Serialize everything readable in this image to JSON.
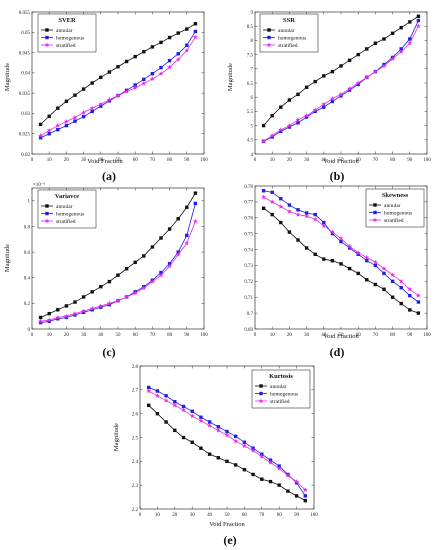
{
  "colors": {
    "annular": "#111111",
    "homogenous": "#1f1fe6",
    "stratified": "#e62ee6"
  },
  "chart_data": [
    {
      "type": "line",
      "panel_label": "(a)",
      "legend_title": "SVER",
      "legend_position": "top-left",
      "xlabel": "Void Fraction",
      "ylabel": "Magnitude",
      "xlim": [
        0,
        100
      ],
      "ylim": [
        0.02,
        0.055
      ],
      "xticks": [
        "0",
        "10",
        "20",
        "30",
        "40",
        "50",
        "60",
        "70",
        "80",
        "90",
        "100"
      ],
      "yticks": [
        "0.02",
        "0.025",
        "0.03",
        "0.035",
        "0.04",
        "0.045",
        "0.05",
        "0.055"
      ],
      "x": [
        5,
        10,
        15,
        20,
        25,
        30,
        35,
        40,
        45,
        50,
        55,
        60,
        65,
        70,
        75,
        80,
        85,
        90,
        95
      ],
      "series": [
        {
          "name": "annular",
          "color": "#111111",
          "marker": "square",
          "values": [
            0.0273,
            0.0293,
            0.0313,
            0.033,
            0.0345,
            0.036,
            0.0375,
            0.0389,
            0.0402,
            0.0415,
            0.0428,
            0.044,
            0.0452,
            0.0464,
            0.0475,
            0.0487,
            0.0498,
            0.0508,
            0.0521
          ]
        },
        {
          "name": "homogenous",
          "color": "#1f1fe6",
          "marker": "square",
          "values": [
            0.024,
            0.025,
            0.026,
            0.027,
            0.0281,
            0.0292,
            0.0305,
            0.0318,
            0.0331,
            0.0344,
            0.0357,
            0.037,
            0.0384,
            0.0398,
            0.0413,
            0.043,
            0.0447,
            0.0468,
            0.0502
          ]
        },
        {
          "name": "stratified",
          "color": "#e62ee6",
          "marker": "star",
          "values": [
            0.0245,
            0.0258,
            0.027,
            0.028,
            0.029,
            0.0302,
            0.0313,
            0.0323,
            0.0334,
            0.0344,
            0.0354,
            0.0363,
            0.0374,
            0.0385,
            0.0398,
            0.0414,
            0.0433,
            0.0455,
            0.0488
          ]
        }
      ]
    },
    {
      "type": "line",
      "panel_label": "(b)",
      "legend_title": "SSR",
      "legend_position": "top-left",
      "xlabel": "Void Fraction",
      "ylabel": "Magnitude",
      "xlim": [
        0,
        100
      ],
      "ylim": [
        4,
        9
      ],
      "xticks": [
        "0",
        "10",
        "20",
        "30",
        "40",
        "50",
        "60",
        "70",
        "80",
        "90",
        "100"
      ],
      "yticks": [
        "4",
        "4.5",
        "5",
        "5.5",
        "6",
        "6.5",
        "7",
        "7.5",
        "8",
        "8.5",
        "9"
      ],
      "x": [
        5,
        10,
        15,
        20,
        25,
        30,
        35,
        40,
        45,
        50,
        55,
        60,
        65,
        70,
        75,
        80,
        85,
        90,
        95
      ],
      "series": [
        {
          "name": "annular",
          "color": "#111111",
          "marker": "square",
          "values": [
            5.0,
            5.35,
            5.65,
            5.9,
            6.1,
            6.35,
            6.55,
            6.75,
            6.9,
            7.1,
            7.3,
            7.5,
            7.7,
            7.9,
            8.05,
            8.25,
            8.45,
            8.65,
            8.85
          ]
        },
        {
          "name": "homogenous",
          "color": "#1f1fe6",
          "marker": "square",
          "values": [
            4.45,
            4.6,
            4.8,
            4.95,
            5.1,
            5.3,
            5.5,
            5.65,
            5.85,
            6.05,
            6.25,
            6.45,
            6.7,
            6.9,
            7.15,
            7.4,
            7.7,
            8.05,
            8.7
          ]
        },
        {
          "name": "stratified",
          "color": "#e62ee6",
          "marker": "star",
          "values": [
            4.45,
            4.65,
            4.85,
            5.0,
            5.2,
            5.35,
            5.55,
            5.75,
            5.95,
            6.1,
            6.3,
            6.5,
            6.7,
            6.9,
            7.1,
            7.35,
            7.6,
            7.9,
            8.5
          ]
        }
      ]
    },
    {
      "type": "line",
      "panel_label": "(c)",
      "legend_title": "Variavce",
      "legend_position": "top-left",
      "xlabel": "",
      "ylabel": "Magnitude",
      "exponent_label": "×10⁻⁶",
      "xlim": [
        0,
        100
      ],
      "ylim": [
        0,
        1.1
      ],
      "xticks": [
        "0",
        "10",
        "20",
        "30",
        "40",
        "50",
        "60",
        "70",
        "80",
        "90",
        "100"
      ],
      "yticks": [
        "0",
        "0.2",
        "0.4",
        "0.6",
        "0.8",
        "1"
      ],
      "x": [
        5,
        10,
        15,
        20,
        25,
        30,
        35,
        40,
        45,
        50,
        55,
        60,
        65,
        70,
        75,
        80,
        85,
        90,
        95
      ],
      "series": [
        {
          "name": "annular",
          "color": "#111111",
          "marker": "square",
          "values": [
            0.09,
            0.12,
            0.15,
            0.18,
            0.21,
            0.25,
            0.29,
            0.33,
            0.37,
            0.42,
            0.47,
            0.52,
            0.57,
            0.64,
            0.71,
            0.78,
            0.86,
            0.95,
            1.06
          ]
        },
        {
          "name": "homogenous",
          "color": "#1f1fe6",
          "marker": "square",
          "values": [
            0.05,
            0.06,
            0.08,
            0.09,
            0.11,
            0.13,
            0.15,
            0.17,
            0.19,
            0.22,
            0.25,
            0.29,
            0.33,
            0.38,
            0.44,
            0.51,
            0.6,
            0.73,
            0.98
          ]
        },
        {
          "name": "stratified",
          "color": "#e62ee6",
          "marker": "star",
          "values": [
            0.06,
            0.07,
            0.09,
            0.1,
            0.12,
            0.14,
            0.16,
            0.18,
            0.2,
            0.22,
            0.25,
            0.28,
            0.32,
            0.37,
            0.42,
            0.49,
            0.58,
            0.67,
            0.84
          ]
        }
      ]
    },
    {
      "type": "line",
      "panel_label": "(d)",
      "legend_title": "Skewness",
      "legend_position": "top-right",
      "xlabel": "Void Fraction",
      "ylabel": "",
      "xlim": [
        0,
        100
      ],
      "ylim": [
        0.69,
        0.78
      ],
      "xticks": [
        "0",
        "10",
        "20",
        "30",
        "40",
        "50",
        "60",
        "70",
        "80",
        "90",
        "100"
      ],
      "yticks": [
        "0.69",
        "0.7",
        "0.71",
        "0.72",
        "0.73",
        "0.74",
        "0.75",
        "0.76",
        "0.77",
        "0.78"
      ],
      "x": [
        5,
        10,
        15,
        20,
        25,
        30,
        35,
        40,
        45,
        50,
        55,
        60,
        65,
        70,
        75,
        80,
        85,
        90,
        95
      ],
      "series": [
        {
          "name": "annular",
          "color": "#111111",
          "marker": "square",
          "values": [
            0.766,
            0.762,
            0.757,
            0.751,
            0.746,
            0.741,
            0.737,
            0.734,
            0.733,
            0.731,
            0.728,
            0.725,
            0.721,
            0.718,
            0.715,
            0.71,
            0.706,
            0.702,
            0.7
          ]
        },
        {
          "name": "homogenous",
          "color": "#1f1fe6",
          "marker": "square",
          "values": [
            0.777,
            0.776,
            0.772,
            0.768,
            0.765,
            0.763,
            0.762,
            0.757,
            0.75,
            0.745,
            0.741,
            0.737,
            0.733,
            0.73,
            0.725,
            0.72,
            0.716,
            0.711,
            0.707
          ]
        },
        {
          "name": "stratified",
          "color": "#e62ee6",
          "marker": "star",
          "values": [
            0.773,
            0.77,
            0.767,
            0.764,
            0.762,
            0.761,
            0.759,
            0.755,
            0.751,
            0.747,
            0.742,
            0.738,
            0.735,
            0.732,
            0.728,
            0.724,
            0.72,
            0.715,
            0.711
          ]
        }
      ]
    },
    {
      "type": "line",
      "panel_label": "(e)",
      "legend_title": "Kurtosis",
      "legend_position": "top-right",
      "xlabel": "Void Fraction",
      "ylabel": "Magnitude",
      "xlim": [
        0,
        100
      ],
      "ylim": [
        2.2,
        2.8
      ],
      "xticks": [
        "0",
        "10",
        "20",
        "30",
        "40",
        "50",
        "60",
        "70",
        "80",
        "90",
        "100"
      ],
      "yticks": [
        "2.2",
        "2.3",
        "2.4",
        "2.5",
        "2.6",
        "2.7",
        "2.8"
      ],
      "x": [
        5,
        10,
        15,
        20,
        25,
        30,
        35,
        40,
        45,
        50,
        55,
        60,
        65,
        70,
        75,
        80,
        85,
        90,
        95
      ],
      "series": [
        {
          "name": "annular",
          "color": "#111111",
          "marker": "square",
          "values": [
            2.635,
            2.6,
            2.565,
            2.53,
            2.5,
            2.48,
            2.455,
            2.43,
            2.415,
            2.4,
            2.385,
            2.365,
            2.345,
            2.325,
            2.315,
            2.3,
            2.275,
            2.255,
            2.235
          ]
        },
        {
          "name": "homogenous",
          "color": "#1f1fe6",
          "marker": "square",
          "values": [
            2.71,
            2.695,
            2.675,
            2.65,
            2.63,
            2.61,
            2.585,
            2.565,
            2.545,
            2.525,
            2.505,
            2.48,
            2.455,
            2.43,
            2.405,
            2.38,
            2.345,
            2.31,
            2.255
          ]
        },
        {
          "name": "stratified",
          "color": "#e62ee6",
          "marker": "star",
          "values": [
            2.695,
            2.675,
            2.655,
            2.635,
            2.615,
            2.59,
            2.57,
            2.55,
            2.53,
            2.51,
            2.485,
            2.465,
            2.445,
            2.42,
            2.395,
            2.37,
            2.34,
            2.315,
            2.28
          ]
        }
      ]
    }
  ]
}
